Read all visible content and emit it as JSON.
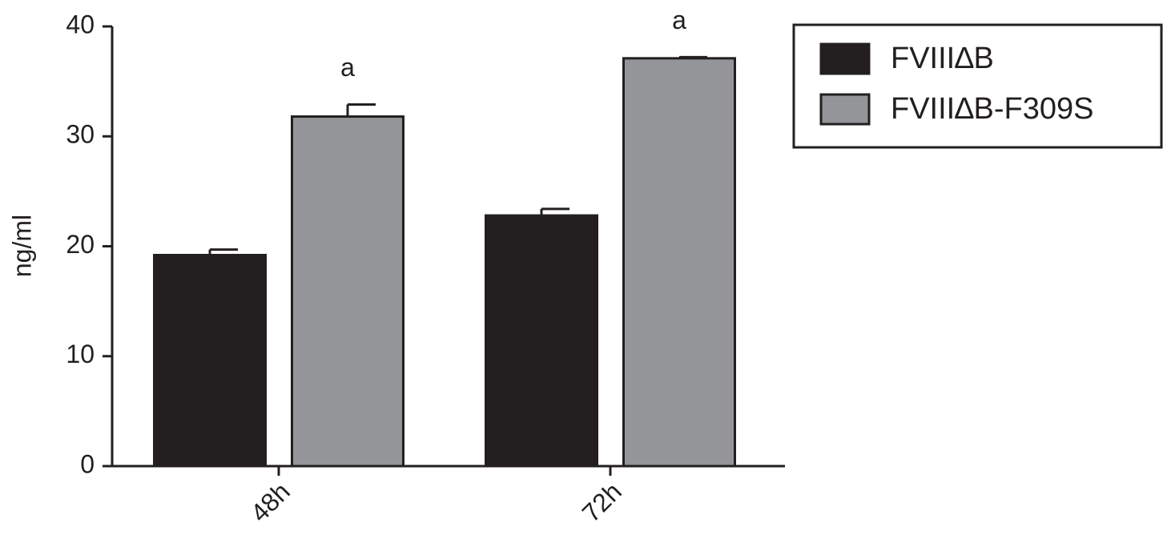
{
  "chart_data": {
    "type": "bar",
    "y_label": "ng/ml",
    "categories": [
      "48h",
      "72h"
    ],
    "series": [
      {
        "name": "FVIII∆B",
        "color": "#231f20",
        "values": [
          19.2,
          22.8
        ],
        "errors": [
          0.5,
          0.6
        ]
      },
      {
        "name": "FVIII∆B-F309S",
        "color": "#939598",
        "values": [
          31.8,
          37.1
        ],
        "errors": [
          1.1,
          0.1
        ],
        "annotations": [
          "a",
          "a"
        ]
      }
    ],
    "ylim": [
      0,
      40
    ],
    "yticks": [
      0,
      10,
      20,
      30,
      40
    ],
    "grid": false,
    "legend": "upper right"
  }
}
